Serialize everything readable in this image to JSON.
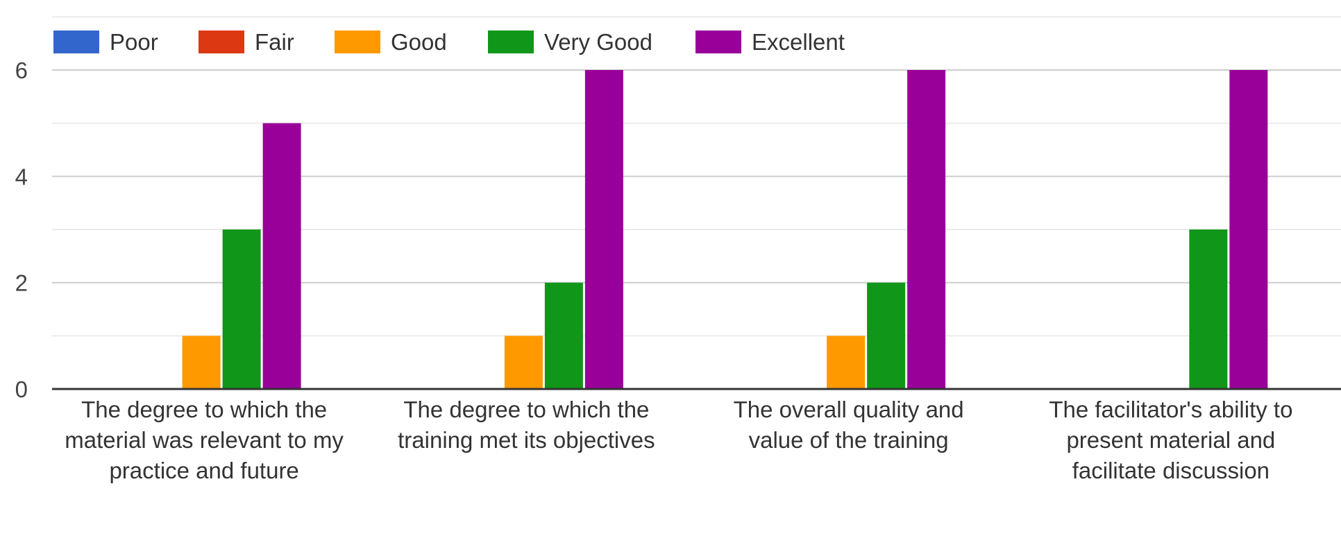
{
  "chart_data": {
    "type": "bar",
    "categories": [
      [
        "The degree to which the",
        "material was relevant to my",
        "practice and future"
      ],
      [
        "The degree to which the",
        "training met its objectives"
      ],
      [
        "The overall quality and",
        "value of the training"
      ],
      [
        "The facilitator's ability to",
        "present material and",
        "facilitate discussion"
      ]
    ],
    "series": [
      {
        "name": "Poor",
        "color": "#3366cc",
        "values": [
          0,
          0,
          0,
          0
        ]
      },
      {
        "name": "Fair",
        "color": "#dc3912",
        "values": [
          0,
          0,
          0,
          0
        ]
      },
      {
        "name": "Good",
        "color": "#ff9900",
        "values": [
          1,
          1,
          1,
          0
        ]
      },
      {
        "name": "Very Good",
        "color": "#109618",
        "values": [
          3,
          2,
          2,
          3
        ]
      },
      {
        "name": "Excellent",
        "color": "#990099",
        "values": [
          5,
          6,
          6,
          6
        ]
      }
    ],
    "ylim": [
      0,
      7
    ],
    "yticks": [
      0,
      2,
      4,
      6
    ],
    "grid": true,
    "legend_position": "top-left"
  }
}
